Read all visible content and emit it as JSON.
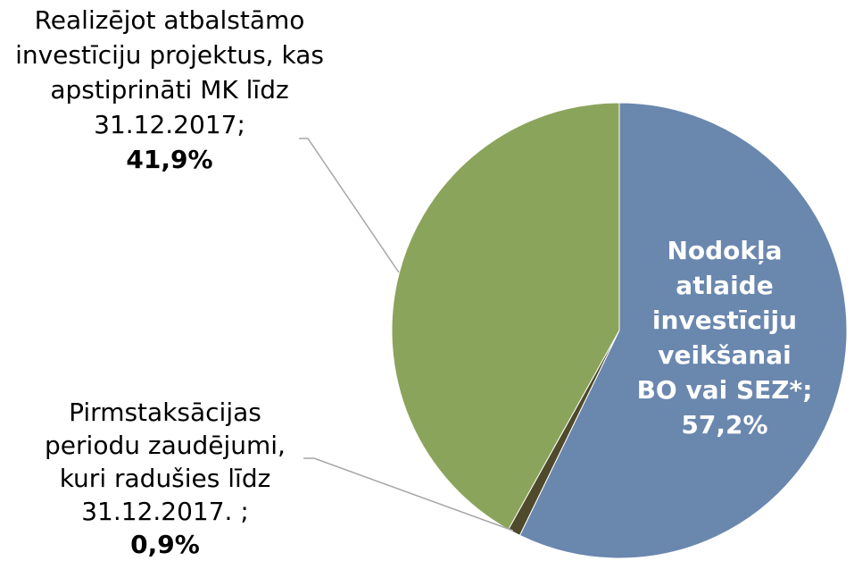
{
  "chart_data": {
    "type": "pie",
    "categories": [
      "Nodokļa atlaide investīciju veikšanai BO vai SEZ*;",
      "Pirmstaksācijas periodu zaudējumi, kuri radušies līdz 31.12.2017. ;",
      "Realizējot atbalstāmo investīciju projektus, kas apstiprināti MK līdz 31.12.2017;"
    ],
    "values": [
      57.2,
      0.9,
      41.9
    ],
    "value_labels": [
      "57,2%",
      "0,9%",
      "41,9%"
    ],
    "colors": [
      "#6a87ae",
      "#4e4a2b",
      "#8ba45b"
    ]
  }
}
